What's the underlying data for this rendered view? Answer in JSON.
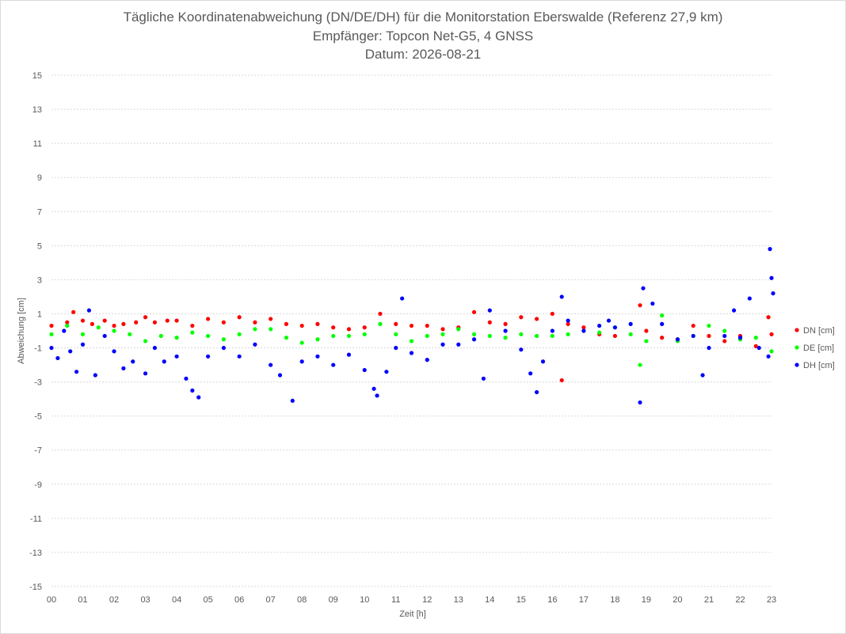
{
  "chart_data": {
    "type": "scatter",
    "title": "Tägliche Koordinatenabweichung (DN/DE/DH) für die Monitorstation Eberswalde (Referenz 27,9 km)",
    "subtitle_lines": [
      "Empfänger: Topcon Net-G5, 4 GNSS",
      "Datum: 2026-08-21"
    ],
    "xlabel": "Zeit [h]",
    "ylabel": "Abweichung [cm]",
    "xlim": [
      0,
      23
    ],
    "ylim": [
      -15,
      15
    ],
    "x_ticks": [
      "00",
      "01",
      "02",
      "03",
      "04",
      "05",
      "06",
      "07",
      "08",
      "09",
      "10",
      "11",
      "12",
      "13",
      "14",
      "15",
      "16",
      "17",
      "18",
      "19",
      "20",
      "21",
      "22",
      "23"
    ],
    "y_ticks": [
      15,
      13,
      11,
      9,
      7,
      5,
      3,
      1,
      -1,
      -3,
      -5,
      -7,
      -9,
      -11,
      -13,
      -15
    ],
    "grid": "horizontal",
    "legend_position": "right",
    "series": [
      {
        "name": "DN [cm]",
        "color": "#ff0000",
        "points": [
          [
            0,
            0.3
          ],
          [
            0.5,
            0.5
          ],
          [
            0.7,
            1.1
          ],
          [
            1,
            0.6
          ],
          [
            1.3,
            0.4
          ],
          [
            1.7,
            0.6
          ],
          [
            2,
            0.3
          ],
          [
            2.3,
            0.4
          ],
          [
            2.7,
            0.5
          ],
          [
            3,
            0.8
          ],
          [
            3.3,
            0.5
          ],
          [
            3.7,
            0.6
          ],
          [
            4,
            0.6
          ],
          [
            4.5,
            0.3
          ],
          [
            5,
            0.7
          ],
          [
            5.5,
            0.5
          ],
          [
            6,
            0.8
          ],
          [
            6.5,
            0.5
          ],
          [
            7,
            0.7
          ],
          [
            7.5,
            0.4
          ],
          [
            8,
            0.3
          ],
          [
            8.5,
            0.4
          ],
          [
            9,
            0.2
          ],
          [
            9.5,
            0.1
          ],
          [
            10,
            0.2
          ],
          [
            10.5,
            1.0
          ],
          [
            11,
            0.4
          ],
          [
            11.5,
            0.3
          ],
          [
            12,
            0.3
          ],
          [
            12.5,
            0.1
          ],
          [
            13,
            0.2
          ],
          [
            13.5,
            1.1
          ],
          [
            14,
            0.5
          ],
          [
            14.5,
            0.4
          ],
          [
            15,
            0.8
          ],
          [
            15.5,
            0.7
          ],
          [
            16,
            1.0
          ],
          [
            16.3,
            -2.9
          ],
          [
            16.5,
            0.4
          ],
          [
            17,
            0.2
          ],
          [
            17.5,
            -0.2
          ],
          [
            18,
            -0.3
          ],
          [
            18.8,
            1.5
          ],
          [
            19,
            0.0
          ],
          [
            19.5,
            -0.4
          ],
          [
            20,
            -0.5
          ],
          [
            20.5,
            0.3
          ],
          [
            21,
            -0.3
          ],
          [
            21.5,
            -0.6
          ],
          [
            22,
            -0.3
          ],
          [
            22.5,
            -0.9
          ],
          [
            22.9,
            0.8
          ],
          [
            23,
            -0.2
          ]
        ]
      },
      {
        "name": "DE [cm]",
        "color": "#00ff00",
        "points": [
          [
            0,
            -0.2
          ],
          [
            0.5,
            0.3
          ],
          [
            1,
            -0.2
          ],
          [
            1.5,
            0.2
          ],
          [
            2,
            0.0
          ],
          [
            2.5,
            -0.2
          ],
          [
            3,
            -0.6
          ],
          [
            3.5,
            -0.3
          ],
          [
            4,
            -0.4
          ],
          [
            4.5,
            -0.1
          ],
          [
            5,
            -0.3
          ],
          [
            5.5,
            -0.5
          ],
          [
            6,
            -0.2
          ],
          [
            6.5,
            0.1
          ],
          [
            7,
            0.1
          ],
          [
            7.5,
            -0.4
          ],
          [
            8,
            -0.7
          ],
          [
            8.5,
            -0.5
          ],
          [
            9,
            -0.3
          ],
          [
            9.5,
            -0.3
          ],
          [
            10,
            -0.2
          ],
          [
            10.5,
            0.4
          ],
          [
            11,
            -0.2
          ],
          [
            11.5,
            -0.6
          ],
          [
            12,
            -0.3
          ],
          [
            12.5,
            -0.2
          ],
          [
            13,
            0.1
          ],
          [
            13.5,
            -0.2
          ],
          [
            14,
            -0.3
          ],
          [
            14.5,
            -0.4
          ],
          [
            15,
            -0.2
          ],
          [
            15.5,
            -0.3
          ],
          [
            16,
            -0.3
          ],
          [
            16.5,
            -0.2
          ],
          [
            17,
            0.0
          ],
          [
            17.5,
            -0.1
          ],
          [
            18,
            0.2
          ],
          [
            18.5,
            -0.2
          ],
          [
            18.8,
            -2.0
          ],
          [
            19,
            -0.6
          ],
          [
            19.5,
            0.9
          ],
          [
            20,
            -0.6
          ],
          [
            20.5,
            -0.3
          ],
          [
            21,
            0.3
          ],
          [
            21.5,
            0.0
          ],
          [
            22,
            -0.5
          ],
          [
            22.5,
            -0.4
          ],
          [
            23,
            -1.2
          ]
        ]
      },
      {
        "name": "DH [cm]",
        "color": "#0000ff",
        "points": [
          [
            0,
            -1.0
          ],
          [
            0.2,
            -1.6
          ],
          [
            0.4,
            0.0
          ],
          [
            0.6,
            -1.2
          ],
          [
            0.8,
            -2.4
          ],
          [
            1,
            -0.8
          ],
          [
            1.2,
            1.2
          ],
          [
            1.4,
            -2.6
          ],
          [
            1.7,
            -0.3
          ],
          [
            2,
            -1.2
          ],
          [
            2.3,
            -2.2
          ],
          [
            2.6,
            -1.8
          ],
          [
            3,
            -2.5
          ],
          [
            3.3,
            -1.0
          ],
          [
            3.6,
            -1.8
          ],
          [
            4,
            -1.5
          ],
          [
            4.3,
            -2.8
          ],
          [
            4.5,
            -3.5
          ],
          [
            4.7,
            -3.9
          ],
          [
            5,
            -1.5
          ],
          [
            5.5,
            -1.0
          ],
          [
            6,
            -1.5
          ],
          [
            6.5,
            -0.8
          ],
          [
            7,
            -2.0
          ],
          [
            7.3,
            -2.6
          ],
          [
            7.7,
            -4.1
          ],
          [
            8,
            -1.8
          ],
          [
            8.5,
            -1.5
          ],
          [
            9,
            -2.0
          ],
          [
            9.5,
            -1.4
          ],
          [
            10,
            -2.3
          ],
          [
            10.3,
            -3.4
          ],
          [
            10.4,
            -3.8
          ],
          [
            10.7,
            -2.4
          ],
          [
            11,
            -1.0
          ],
          [
            11.2,
            1.9
          ],
          [
            11.5,
            -1.3
          ],
          [
            12,
            -1.7
          ],
          [
            12.5,
            -0.8
          ],
          [
            13,
            -0.8
          ],
          [
            13.5,
            -0.5
          ],
          [
            13.8,
            -2.8
          ],
          [
            14,
            1.2
          ],
          [
            14.5,
            0.0
          ],
          [
            15,
            -1.1
          ],
          [
            15.3,
            -2.5
          ],
          [
            15.5,
            -3.6
          ],
          [
            15.7,
            -1.8
          ],
          [
            16,
            0.0
          ],
          [
            16.3,
            2.0
          ],
          [
            16.5,
            0.6
          ],
          [
            17,
            0.0
          ],
          [
            17.5,
            0.3
          ],
          [
            17.8,
            0.6
          ],
          [
            18,
            0.2
          ],
          [
            18.5,
            0.4
          ],
          [
            18.8,
            -4.2
          ],
          [
            18.9,
            2.5
          ],
          [
            19.2,
            1.6
          ],
          [
            19.5,
            0.4
          ],
          [
            20,
            -0.5
          ],
          [
            20.5,
            -0.3
          ],
          [
            20.8,
            -2.6
          ],
          [
            21,
            -1.0
          ],
          [
            21.5,
            -0.3
          ],
          [
            21.8,
            1.2
          ],
          [
            22,
            -0.4
          ],
          [
            22.3,
            1.9
          ],
          [
            22.6,
            -1.0
          ],
          [
            22.9,
            -1.5
          ],
          [
            22.95,
            4.8
          ],
          [
            23,
            3.1
          ],
          [
            23.05,
            2.2
          ]
        ]
      }
    ]
  }
}
